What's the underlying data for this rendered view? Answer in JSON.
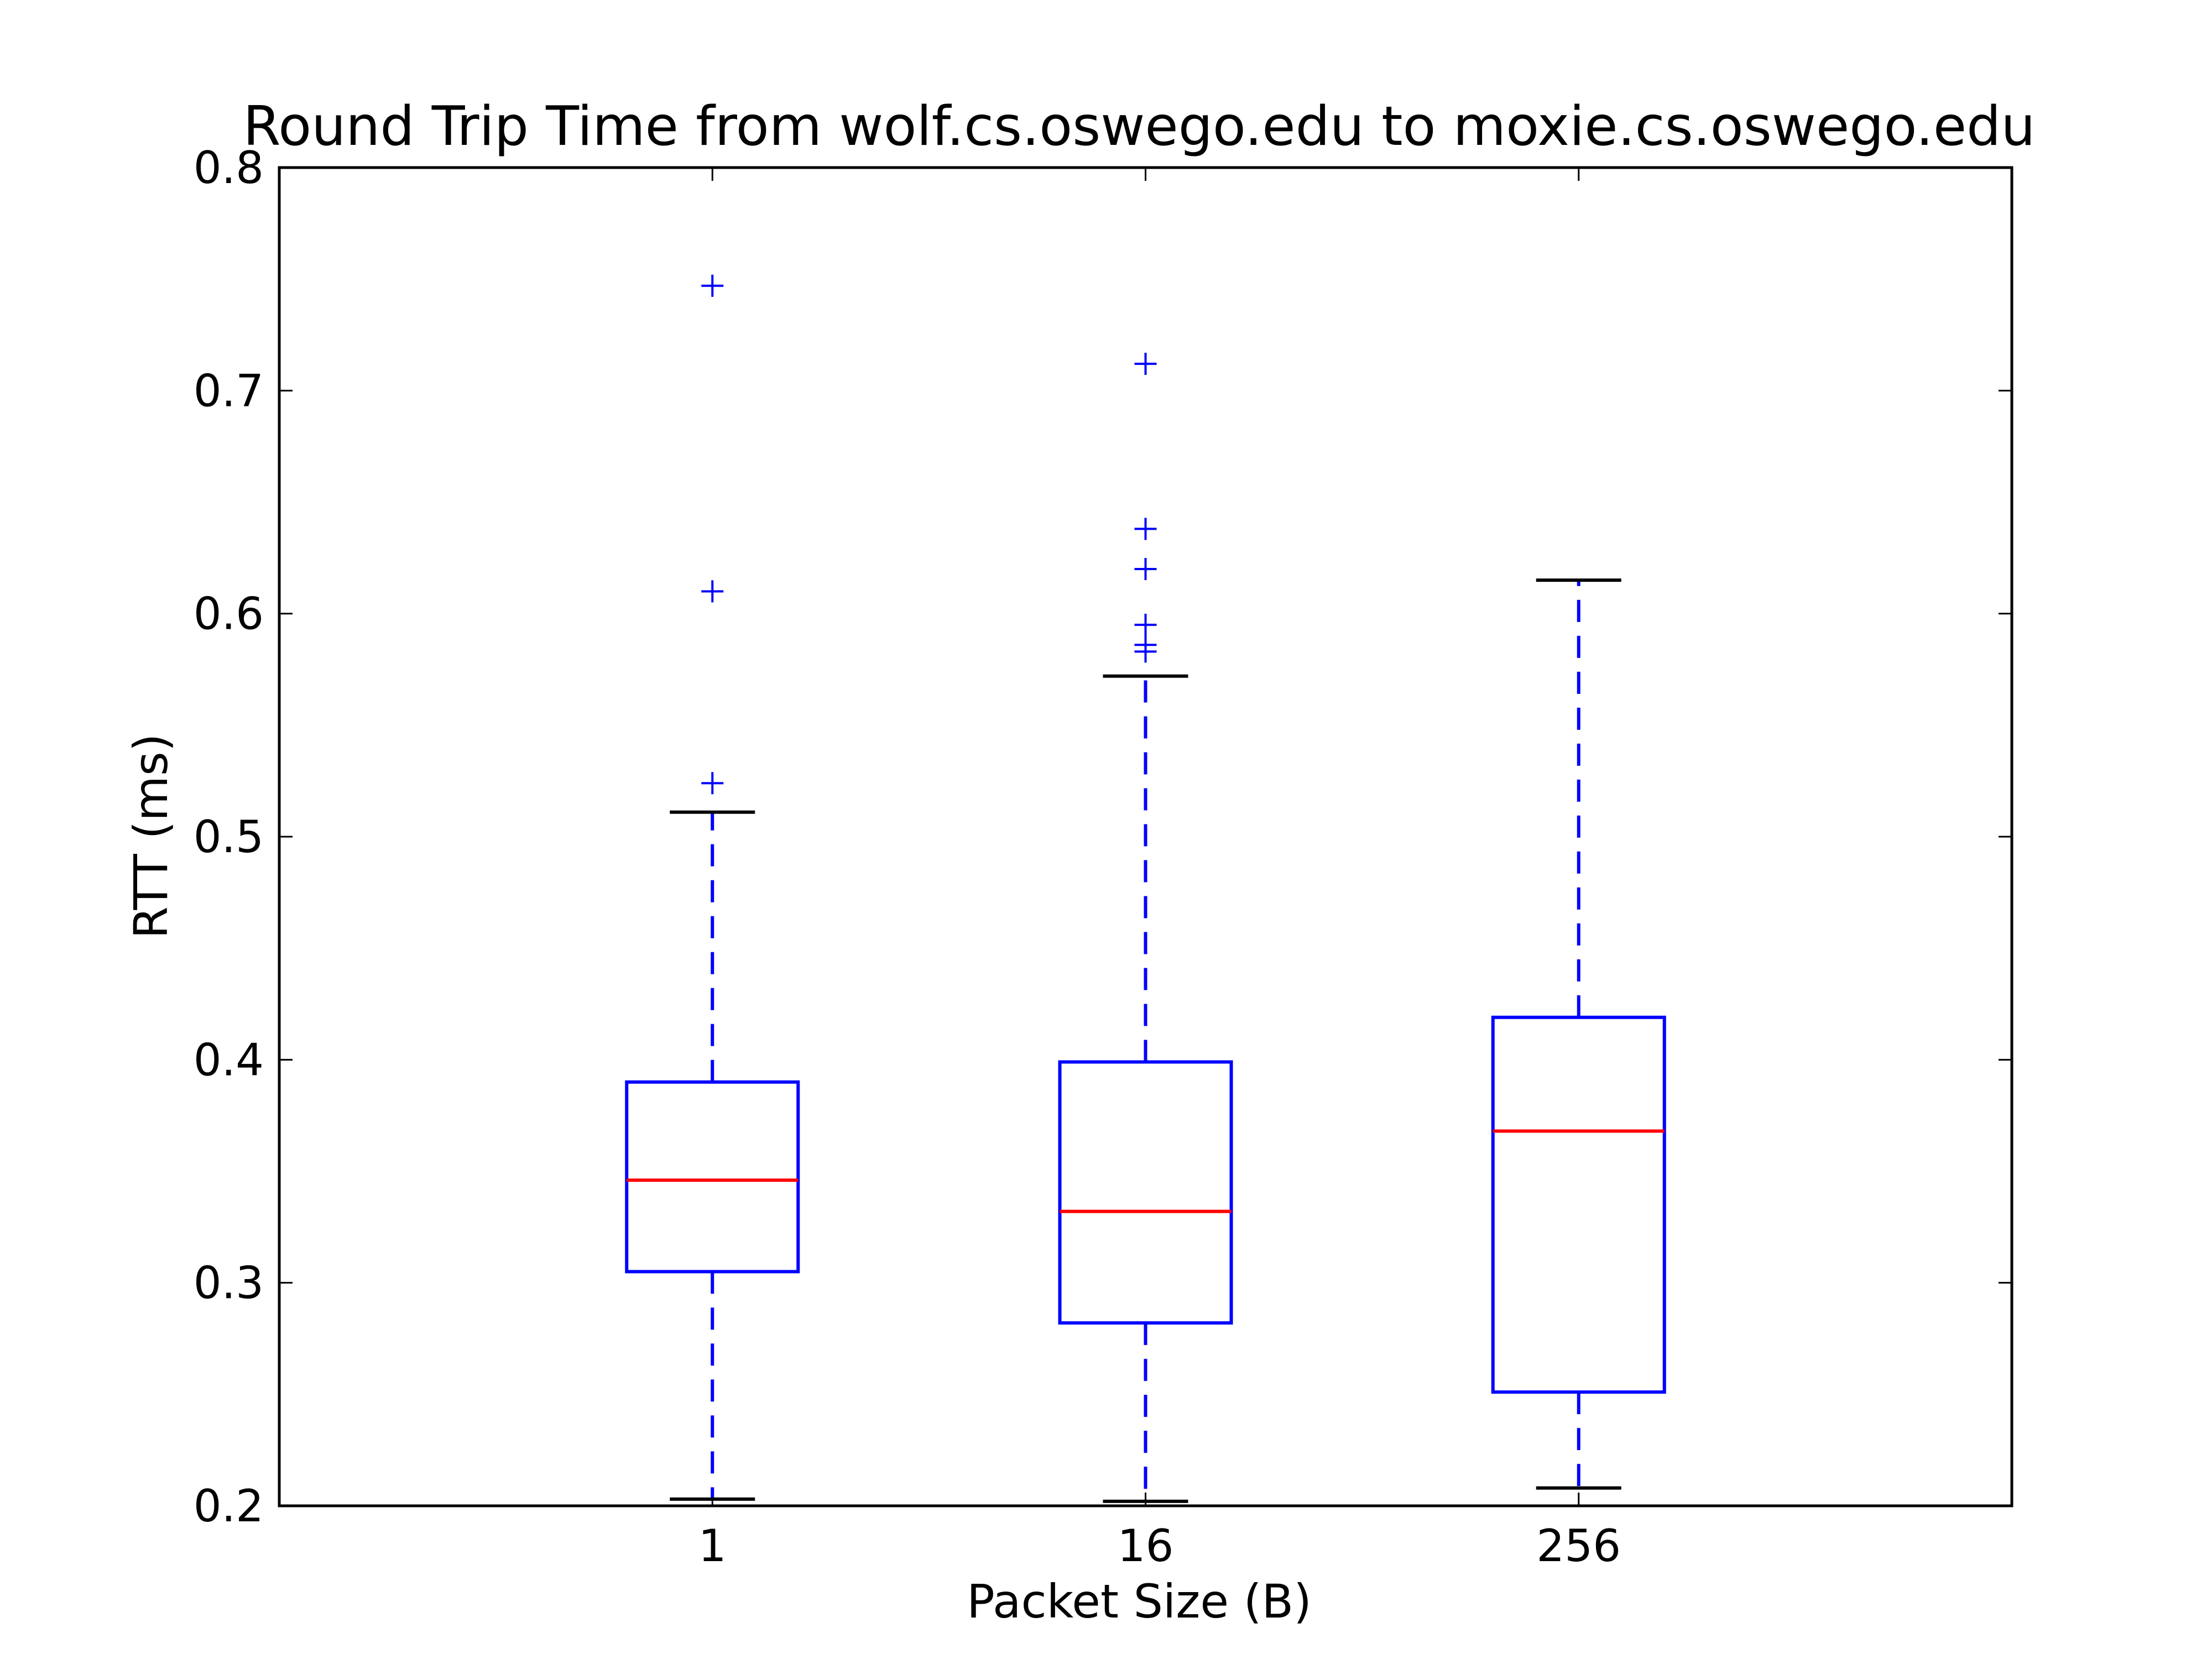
{
  "chart_data": {
    "type": "box",
    "title": "Round Trip Time from wolf.cs.oswego.edu to moxie.cs.oswego.edu",
    "xlabel": "Packet Size (B)",
    "ylabel": "RTT (ms)",
    "ylim": [
      0.2,
      0.8
    ],
    "yticks": [
      "0.2",
      "0.3",
      "0.4",
      "0.5",
      "0.6",
      "0.7",
      "0.8"
    ],
    "categories": [
      "1",
      "16",
      "256"
    ],
    "boxes": [
      {
        "category": "1",
        "whisker_low": 0.203,
        "q1": 0.305,
        "median": 0.346,
        "q3": 0.39,
        "whisker_high": 0.511,
        "outliers": [
          0.524,
          0.61,
          0.747
        ]
      },
      {
        "category": "16",
        "whisker_low": 0.202,
        "q1": 0.282,
        "median": 0.332,
        "q3": 0.399,
        "whisker_high": 0.572,
        "outliers": [
          0.583,
          0.586,
          0.595,
          0.62,
          0.638,
          0.712
        ]
      },
      {
        "category": "256",
        "whisker_low": 0.208,
        "q1": 0.251,
        "median": 0.368,
        "q3": 0.419,
        "whisker_high": 0.615,
        "outliers": []
      }
    ],
    "grid": false,
    "legend": "none",
    "colors": {
      "box": "#0000ff",
      "median": "#ff0000",
      "whisker_cap": "#000000",
      "outlier": "#0000ff",
      "axes": "#000000"
    }
  }
}
